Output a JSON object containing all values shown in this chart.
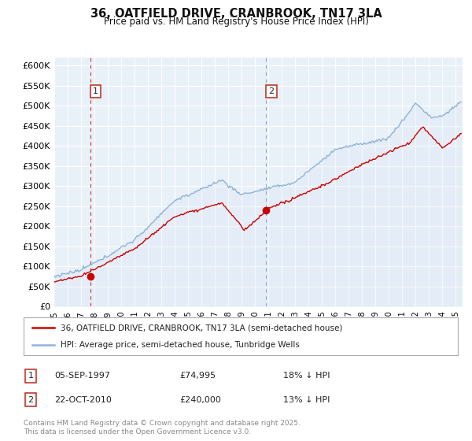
{
  "title": "36, OATFIELD DRIVE, CRANBROOK, TN17 3LA",
  "subtitle": "Price paid vs. HM Land Registry's House Price Index (HPI)",
  "ylabel_ticks": [
    "£0",
    "£50K",
    "£100K",
    "£150K",
    "£200K",
    "£250K",
    "£300K",
    "£350K",
    "£400K",
    "£450K",
    "£500K",
    "£550K",
    "£600K"
  ],
  "ylim": [
    0,
    620000
  ],
  "ytick_vals": [
    0,
    50000,
    100000,
    150000,
    200000,
    250000,
    300000,
    350000,
    400000,
    450000,
    500000,
    550000,
    600000
  ],
  "xlim_start": 1995.0,
  "xlim_end": 2025.5,
  "hpi_color": "#90b4d8",
  "hpi_fill_color": "#dce9f5",
  "price_color": "#cc0000",
  "marker1_x": 1997.68,
  "marker1_y": 74995,
  "marker2_x": 2010.81,
  "marker2_y": 240000,
  "sale1_date": "05-SEP-1997",
  "sale1_price": "£74,995",
  "sale1_hpi": "18% ↓ HPI",
  "sale2_date": "22-OCT-2010",
  "sale2_price": "£240,000",
  "sale2_hpi": "13% ↓ HPI",
  "legend_line1": "36, OATFIELD DRIVE, CRANBROOK, TN17 3LA (semi-detached house)",
  "legend_line2": "HPI: Average price, semi-detached house, Tunbridge Wells",
  "footer": "Contains HM Land Registry data © Crown copyright and database right 2025.\nThis data is licensed under the Open Government Licence v3.0.",
  "background_color": "#ffffff",
  "plot_bg_color": "#e8f0f8",
  "grid_color": "#ffffff"
}
